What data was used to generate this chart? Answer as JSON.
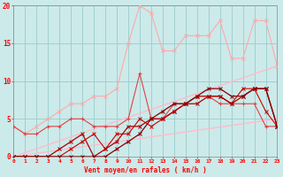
{
  "x": [
    0,
    1,
    2,
    3,
    4,
    5,
    6,
    7,
    8,
    9,
    10,
    11,
    12,
    13,
    14,
    15,
    16,
    17,
    18,
    19,
    20,
    21,
    22,
    23
  ],
  "line_lightest": [
    4,
    3,
    4,
    5,
    6,
    7,
    7,
    8,
    8,
    9,
    15,
    20,
    19,
    14,
    14,
    16,
    16,
    16,
    18,
    13,
    13,
    18,
    18,
    12
  ],
  "line_diag1": [
    0,
    0.52,
    1.04,
    1.57,
    2.09,
    2.61,
    3.13,
    3.65,
    4.17,
    4.7,
    5.22,
    5.74,
    6.26,
    6.78,
    7.3,
    7.83,
    8.35,
    8.87,
    9.39,
    9.91,
    10.43,
    10.96,
    11.48,
    12.0
  ],
  "line_diag2": [
    0,
    0.22,
    0.43,
    0.65,
    0.87,
    1.09,
    1.3,
    1.52,
    1.74,
    1.96,
    2.17,
    2.39,
    2.61,
    2.83,
    3.04,
    3.26,
    3.48,
    3.7,
    3.91,
    4.13,
    4.35,
    4.57,
    4.78,
    5.0
  ],
  "line_med": [
    4,
    3,
    3,
    4,
    4,
    5,
    5,
    4,
    4,
    4,
    5,
    11,
    5,
    5,
    7,
    7,
    8,
    8,
    7,
    7,
    7,
    7,
    4,
    4
  ],
  "line_dark1": [
    0,
    0,
    0,
    0,
    0,
    1,
    2,
    3,
    1,
    3,
    3,
    5,
    4,
    5,
    6,
    7,
    8,
    8,
    8,
    7,
    9,
    9,
    6,
    4
  ],
  "line_dark2": [
    0,
    0,
    0,
    0,
    1,
    2,
    3,
    0,
    1,
    2,
    4,
    4,
    5,
    5,
    6,
    7,
    7,
    8,
    8,
    7,
    8,
    9,
    9,
    4
  ],
  "line_darkest": [
    0,
    0,
    0,
    0,
    0,
    0,
    0,
    0,
    0,
    1,
    2,
    3,
    5,
    6,
    7,
    7,
    8,
    9,
    9,
    8,
    8,
    9,
    9,
    4
  ],
  "bg_color": "#cceaea",
  "grid_color": "#99cccc",
  "xlabel": "Vent moyen/en rafales ( km/h )",
  "xlim": [
    0,
    23
  ],
  "ylim": [
    0,
    20
  ],
  "yticks": [
    0,
    5,
    10,
    15,
    20
  ],
  "xticks": [
    0,
    1,
    2,
    3,
    4,
    5,
    6,
    7,
    8,
    9,
    10,
    11,
    12,
    13,
    14,
    15,
    16,
    17,
    18,
    19,
    20,
    21,
    22,
    23
  ]
}
